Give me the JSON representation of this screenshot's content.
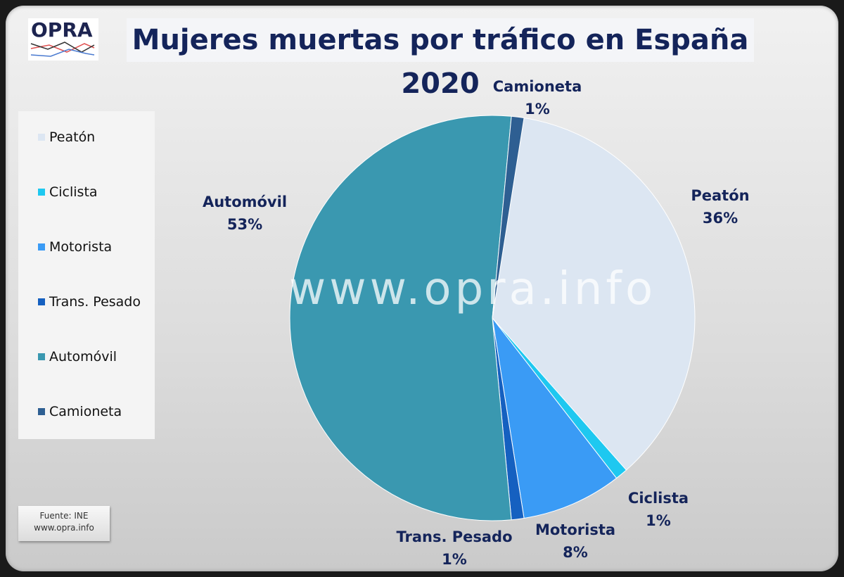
{
  "logo": {
    "text": "OPRA"
  },
  "source": {
    "line1": "Fuente: INE",
    "line2": "www.opra.info"
  },
  "watermark": "www.opra.info",
  "chart_data": {
    "type": "pie",
    "title": "Mujeres muertas por tráfico en España 2020",
    "categories": [
      "Peatón",
      "Ciclista",
      "Motorista",
      "Trans. Pesado",
      "Automóvil",
      "Camioneta"
    ],
    "values": [
      36,
      1,
      8,
      1,
      53,
      1
    ],
    "labels": [
      "36%",
      "1%",
      "8%",
      "1%",
      "53%",
      "1%"
    ],
    "colors": [
      "#dce6f2",
      "#1ec8f0",
      "#3a9bf5",
      "#1560c0",
      "#3a98b0",
      "#2e5f92"
    ],
    "legend": "left"
  }
}
